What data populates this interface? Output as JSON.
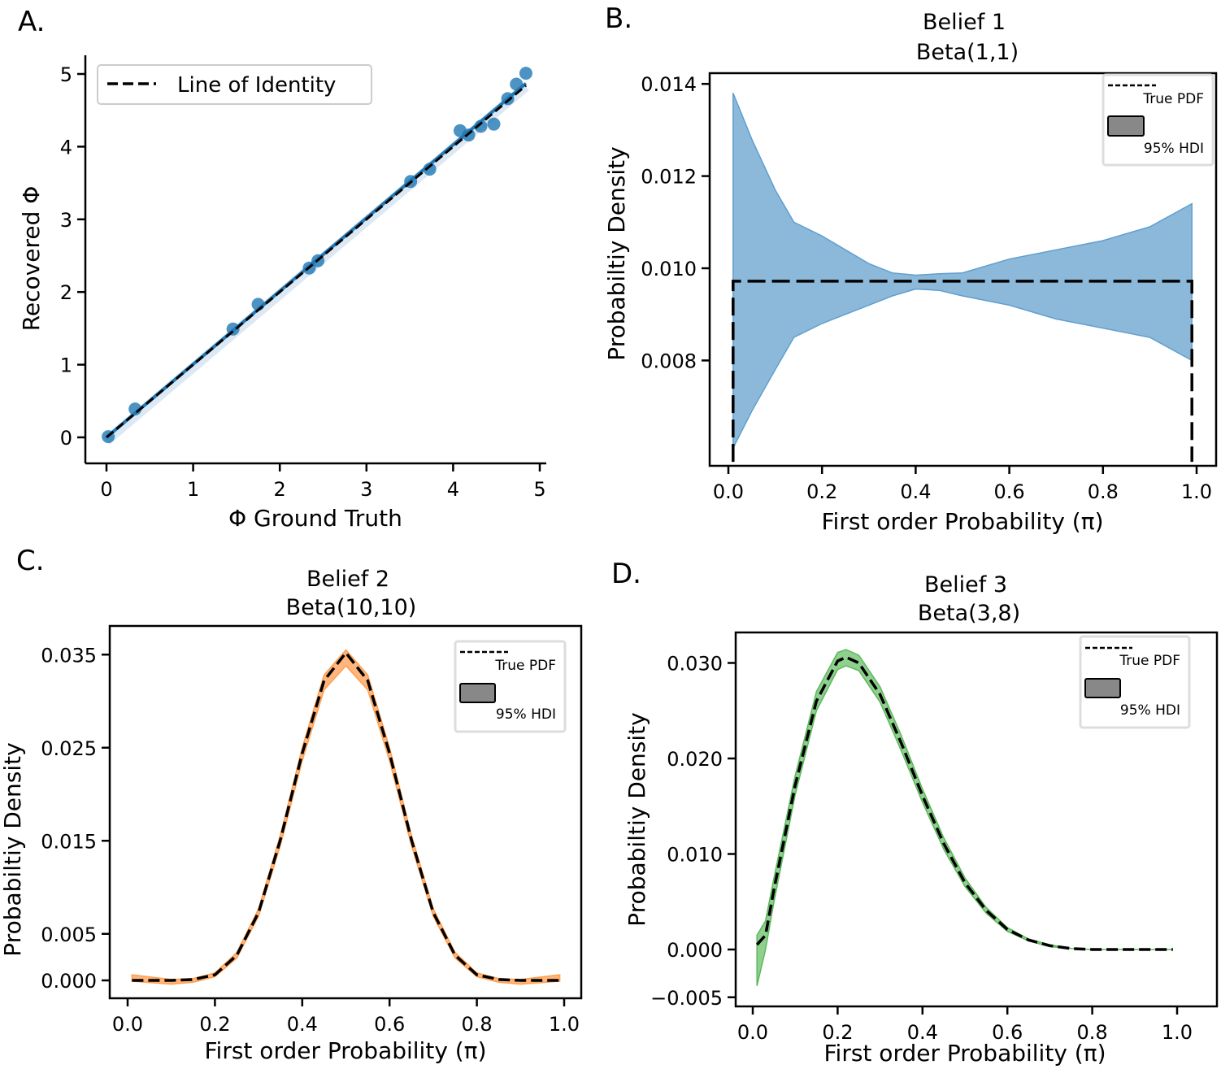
{
  "chart_data": [
    {
      "panel": "A.",
      "type": "scatter",
      "xlabel": "Φ Ground Truth",
      "ylabel": "Recovered Φ",
      "xlim": [
        -0.25,
        5.1
      ],
      "ylim": [
        -0.35,
        5.25
      ],
      "xticks": [
        "0",
        "1",
        "2",
        "3",
        "4",
        "5"
      ],
      "yticks": [
        "0",
        "1",
        "2",
        "3",
        "4",
        "5"
      ],
      "legend": {
        "position": "top-left",
        "entries": [
          "Line of Identity"
        ]
      },
      "points": {
        "x": [
          0.02,
          0.33,
          1.46,
          1.75,
          2.34,
          2.44,
          3.51,
          3.73,
          4.08,
          4.18,
          4.32,
          4.47,
          4.63,
          4.73,
          4.84
        ],
        "y": [
          0.01,
          0.39,
          1.49,
          1.83,
          2.33,
          2.43,
          3.52,
          3.69,
          4.22,
          4.16,
          4.28,
          4.31,
          4.66,
          4.86,
          5.01
        ]
      },
      "regression_line": {
        "x": [
          0.0,
          4.84
        ],
        "y": [
          0.0,
          4.87
        ]
      },
      "identity_line": {
        "x": [
          0.0,
          4.84
        ],
        "y": [
          0.0,
          4.84
        ]
      },
      "colors": {
        "points": "#1f77b4",
        "identity": "#000000"
      }
    },
    {
      "panel": "B.",
      "type": "area",
      "title": [
        "Belief 1",
        "Beta(1,1)"
      ],
      "xlabel": "First order Probability (π)",
      "ylabel": "Probabiltiy Density",
      "xlim": [
        -0.04,
        1.04
      ],
      "ylim": [
        0.0057,
        0.01423
      ],
      "xticks": [
        "0.0",
        "0.2",
        "0.4",
        "0.6",
        "0.8",
        "1.0"
      ],
      "yticks": [
        "0.014",
        "0.012",
        "0.010",
        "0.008"
      ],
      "legend": {
        "position": "top-right",
        "entries": [
          "True PDF",
          "95% HDI"
        ]
      },
      "hdi": {
        "x": [
          0.01,
          0.05,
          0.1,
          0.14,
          0.2,
          0.25,
          0.3,
          0.35,
          0.4,
          0.45,
          0.5,
          0.6,
          0.7,
          0.8,
          0.9,
          0.99
        ],
        "lower": [
          0.0061,
          0.0069,
          0.0078,
          0.0085,
          0.0088,
          0.009,
          0.0092,
          0.0094,
          0.00955,
          0.00952,
          0.0094,
          0.0092,
          0.0089,
          0.0087,
          0.0085,
          0.008
        ],
        "upper": [
          0.0138,
          0.0128,
          0.0117,
          0.011,
          0.0107,
          0.0104,
          0.0101,
          0.0099,
          0.00985,
          0.00988,
          0.0099,
          0.0102,
          0.0104,
          0.0106,
          0.0109,
          0.0114
        ]
      },
      "true_pdf": {
        "x": [
          0.01,
          0.01,
          0.99,
          0.99
        ],
        "y": [
          0.0058,
          0.00972,
          0.00972,
          0.0058
        ]
      },
      "colors": {
        "band": "#8cb9d9",
        "edge": "#5f9fcf"
      }
    },
    {
      "panel": "C.",
      "type": "area",
      "title": [
        "Belief 2",
        "Beta(10,10)"
      ],
      "xlabel": "First order Probability (π)",
      "ylabel": "Probabiltiy Density",
      "xlim": [
        -0.04,
        1.04
      ],
      "ylim": [
        -0.0019,
        0.0381
      ],
      "xticks": [
        "0.0",
        "0.2",
        "0.4",
        "0.6",
        "0.8",
        "1.0"
      ],
      "yticks": [
        {
          "v": 0.035,
          "l": "0.035"
        },
        {
          "v": 0.025,
          "l": "0.025"
        },
        {
          "v": 0.015,
          "l": "0.015"
        },
        {
          "v": 0.005,
          "l": "0.005"
        },
        {
          "v": 0.0,
          "l": "0.000"
        }
      ],
      "legend": {
        "position": "top-right",
        "entries": [
          "True PDF",
          "95% HDI"
        ]
      },
      "true_pdf": {
        "x": [
          0.01,
          0.1,
          0.15,
          0.2,
          0.25,
          0.3,
          0.35,
          0.4,
          0.45,
          0.5,
          0.55,
          0.6,
          0.65,
          0.7,
          0.75,
          0.8,
          0.85,
          0.9,
          0.99
        ],
        "y": [
          0,
          0,
          0.0001,
          0.0006,
          0.0027,
          0.0073,
          0.0151,
          0.0244,
          0.0322,
          0.0352,
          0.0322,
          0.0244,
          0.0151,
          0.0073,
          0.0027,
          0.0006,
          0.0001,
          0,
          0
        ]
      },
      "hdi": {
        "x": [
          0.01,
          0.1,
          0.15,
          0.2,
          0.25,
          0.3,
          0.35,
          0.4,
          0.45,
          0.5,
          0.55,
          0.6,
          0.65,
          0.7,
          0.75,
          0.8,
          0.85,
          0.9,
          0.99
        ],
        "lower": [
          -0.0001,
          -0.0004,
          -0.0002,
          0.0004,
          0.0024,
          0.0069,
          0.0145,
          0.0236,
          0.0312,
          0.0338,
          0.0312,
          0.0236,
          0.0145,
          0.0069,
          0.0024,
          0.0004,
          -0.0002,
          -0.0004,
          -0.0001
        ],
        "upper": [
          0.0006,
          0.0001,
          0.0002,
          0.0008,
          0.003,
          0.0077,
          0.0156,
          0.025,
          0.0328,
          0.0355,
          0.0328,
          0.025,
          0.0156,
          0.0077,
          0.003,
          0.0008,
          0.0002,
          0.0001,
          0.0006
        ]
      },
      "colors": {
        "band": "#ffb57c",
        "edge": "#ff9f50"
      }
    },
    {
      "panel": "D.",
      "type": "area",
      "title": [
        "Belief 3",
        "Beta(3,8)"
      ],
      "xlabel": "First order Probability (π)",
      "ylabel": "Probabiltiy Density",
      "xlim": [
        -0.04,
        1.08
      ],
      "ylim": [
        -0.0059,
        0.0332
      ],
      "xticks": [
        "0.0",
        "0.2",
        "0.4",
        "0.6",
        "0.8",
        "1.0"
      ],
      "yticks": [
        {
          "v": 0.03,
          "l": "0.030"
        },
        {
          "v": 0.02,
          "l": "0.020"
        },
        {
          "v": 0.01,
          "l": "0.010"
        },
        {
          "v": 0.0,
          "l": "0.000"
        },
        {
          "v": -0.005,
          "l": "−0.005"
        }
      ],
      "legend": {
        "position": "top-right",
        "entries": [
          "True PDF",
          "95% HDI"
        ]
      },
      "true_pdf": {
        "x": [
          0.01,
          0.03,
          0.05,
          0.1,
          0.15,
          0.2,
          0.22,
          0.25,
          0.3,
          0.35,
          0.4,
          0.45,
          0.5,
          0.55,
          0.6,
          0.65,
          0.7,
          0.75,
          0.8,
          0.9,
          0.99
        ],
        "y": [
          0.0005,
          0.0015,
          0.0063,
          0.0172,
          0.026,
          0.0302,
          0.0306,
          0.03,
          0.0267,
          0.0216,
          0.0161,
          0.0111,
          0.007,
          0.0041,
          0.0021,
          0.001,
          0.0004,
          0.0001,
          0,
          0,
          0
        ]
      },
      "hdi": {
        "x": [
          0.01,
          0.03,
          0.05,
          0.1,
          0.15,
          0.2,
          0.22,
          0.25,
          0.3,
          0.35,
          0.4,
          0.45,
          0.5,
          0.55,
          0.6,
          0.65,
          0.7,
          0.75,
          0.8,
          0.9,
          0.99
        ],
        "lower": [
          -0.0038,
          0.0,
          0.005,
          0.0162,
          0.025,
          0.0293,
          0.0297,
          0.0292,
          0.0259,
          0.0208,
          0.0154,
          0.0105,
          0.0066,
          0.0038,
          0.0019,
          0.0009,
          0.0003,
          0.0001,
          0,
          0,
          0
        ],
        "upper": [
          0.0015,
          0.003,
          0.0075,
          0.0182,
          0.027,
          0.0311,
          0.0314,
          0.0308,
          0.0275,
          0.0224,
          0.0168,
          0.0117,
          0.0075,
          0.0044,
          0.0023,
          0.0011,
          0.0005,
          0.0001,
          0,
          0,
          0
        ]
      },
      "colors": {
        "band": "#8fd08f",
        "edge": "#5cb85c"
      }
    }
  ]
}
